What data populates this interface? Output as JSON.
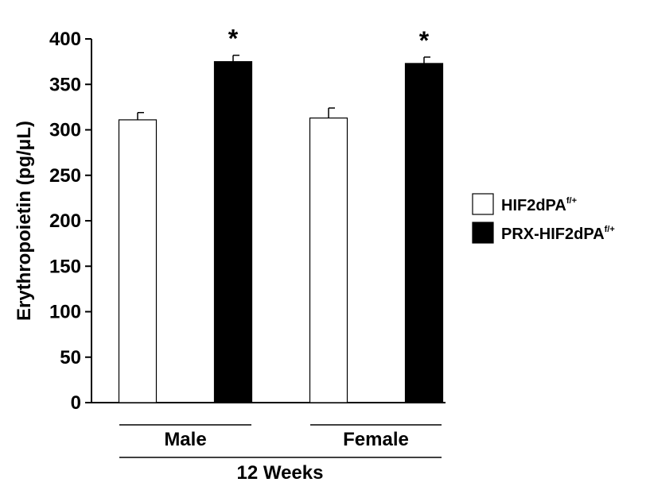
{
  "chart_data": {
    "type": "bar",
    "ylabel": "Erythropoietin (pg/μL)",
    "ylim": [
      0,
      400
    ],
    "yticks": [
      0,
      50,
      100,
      150,
      200,
      250,
      300,
      350,
      400
    ],
    "categories": [
      "Male",
      "Female"
    ],
    "outer_label": "12 Weeks",
    "series": [
      {
        "name": "HIF2dPA",
        "name_superscript": "f/+",
        "fill": "#ffffff",
        "values": [
          311,
          313
        ],
        "errors": [
          8,
          11
        ],
        "annotations": [
          "",
          ""
        ]
      },
      {
        "name": "PRX-HIF2dPA",
        "name_superscript": "f/+",
        "fill": "#000000",
        "values": [
          375,
          373
        ],
        "errors": [
          7,
          7
        ],
        "annotations": [
          "*",
          "*"
        ]
      }
    ],
    "legend": "right",
    "grid": false
  }
}
